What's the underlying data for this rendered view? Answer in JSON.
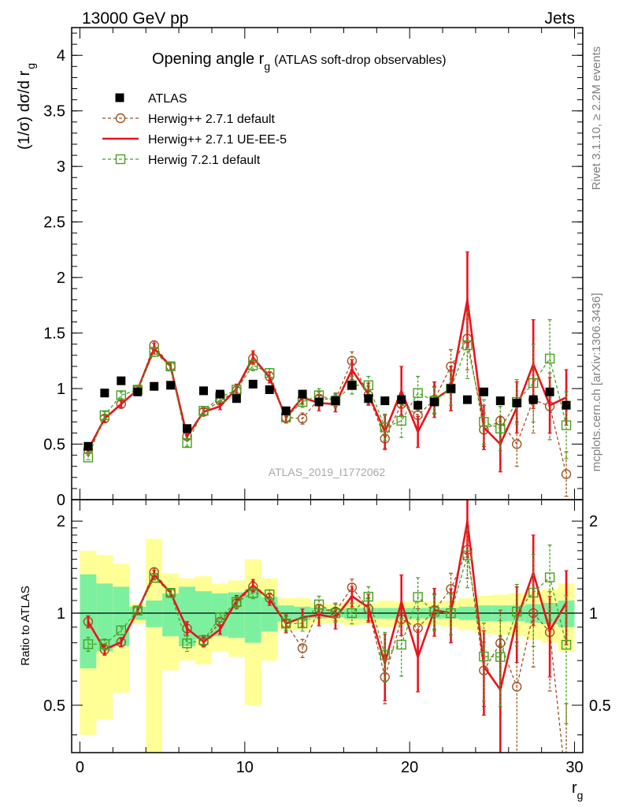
{
  "header": {
    "left": "13000 GeV pp",
    "right": "Jets",
    "title_main": "Opening angle r",
    "title_sub": "g",
    "title_extra": "(ATLAS soft-drop observables)",
    "watermark": "ATLAS_2019_I1772062",
    "side_rivet": "Rivet 3.1.10, ≥ 2.2M events",
    "side_mcplots": "mcplots.cern.ch [arXiv:1306.3436]"
  },
  "axes": {
    "ylabel_main": "(1/σ) dσ/d r",
    "ylabel_main_sub": "g",
    "ylabel_ratio": "Ratio to ATLAS",
    "xlabel": "r",
    "xlabel_sub": "g",
    "main_ylim": [
      0,
      4.25
    ],
    "main_yticks": [
      0,
      0.5,
      1,
      1.5,
      2,
      2.5,
      3,
      3.5,
      4
    ],
    "main_ytick_labels": [
      "0",
      "0.5",
      "1",
      "1.5",
      "2",
      "2.5",
      "3",
      "3.5",
      "4"
    ],
    "ratio_ylim": [
      0.35,
      2.35
    ],
    "ratio_yticks": [
      0.5,
      1,
      2
    ],
    "ratio_ytick_labels": [
      "0.5",
      "1",
      "2"
    ],
    "xlim": [
      -0.5,
      30.5
    ],
    "xticks": [
      0,
      10,
      20,
      30
    ],
    "xtick_labels": [
      "0",
      "10",
      "20",
      "30"
    ]
  },
  "colors": {
    "data": "#000000",
    "herwigpp_default": "#a0521e",
    "herwigpp_ueee5": "#e8141e",
    "herwig7": "#46a01e",
    "band_inner": "#7df0a0",
    "band_outer": "#ffff96"
  },
  "chart_data": {
    "type": "scatter",
    "x": [
      0.5,
      1.5,
      2.5,
      3.5,
      4.5,
      5.5,
      6.5,
      7.5,
      8.5,
      9.5,
      10.5,
      11.5,
      12.5,
      13.5,
      14.5,
      15.5,
      16.5,
      17.5,
      18.5,
      19.5,
      20.5,
      21.5,
      22.5,
      23.5,
      24.5,
      25.5,
      26.5,
      27.5,
      28.5,
      29.5
    ],
    "series": [
      {
        "name": "ATLAS",
        "style": "markers",
        "values": [
          0.48,
          0.96,
          1.07,
          0.97,
          1.02,
          1.03,
          0.64,
          0.98,
          0.95,
          0.91,
          1.04,
          0.99,
          0.8,
          0.95,
          0.88,
          0.89,
          1.03,
          0.91,
          0.89,
          0.9,
          0.85,
          0.88,
          1.0,
          0.9,
          0.97,
          0.89,
          0.87,
          0.9,
          0.97,
          0.85
        ],
        "band_inner": [
          0.34,
          0.25,
          0.22,
          0.05,
          0.1,
          0.16,
          0.22,
          0.18,
          0.16,
          0.17,
          0.2,
          0.13,
          0.06,
          0.05,
          0.04,
          0.03,
          0.04,
          0.04,
          0.04,
          0.04,
          0.04,
          0.04,
          0.04,
          0.05,
          0.06,
          0.06,
          0.06,
          0.07,
          0.08,
          0.1
        ],
        "band_outer": [
          0.6,
          0.55,
          0.45,
          0.08,
          0.75,
          0.35,
          0.3,
          0.32,
          0.25,
          0.28,
          0.5,
          0.3,
          0.12,
          0.12,
          0.08,
          0.07,
          0.09,
          0.08,
          0.1,
          0.09,
          0.09,
          0.09,
          0.1,
          0.12,
          0.14,
          0.15,
          0.16,
          0.18,
          0.2,
          0.25
        ]
      },
      {
        "name": "Herwig++ 2.7.1 default",
        "style": "dashed-circles",
        "values": [
          0.45,
          0.73,
          0.86,
          0.99,
          1.39,
          1.2,
          0.57,
          0.79,
          0.89,
          0.98,
          1.27,
          1.11,
          0.74,
          0.73,
          0.91,
          0.9,
          1.25,
          0.94,
          0.55,
          0.86,
          0.76,
          0.9,
          1.2,
          1.45,
          0.63,
          0.71,
          0.5,
          0.9,
          0.84,
          0.23
        ],
        "errors": [
          0.02,
          0.03,
          0.03,
          0.03,
          0.04,
          0.04,
          0.03,
          0.03,
          0.03,
          0.04,
          0.05,
          0.04,
          0.04,
          0.05,
          0.06,
          0.06,
          0.08,
          0.08,
          0.1,
          0.1,
          0.12,
          0.12,
          0.15,
          0.28,
          0.15,
          0.2,
          0.2,
          0.3,
          0.3,
          0.2
        ]
      },
      {
        "name": "Herwig++ 2.7.1 UE-EE-5",
        "style": "solid-line",
        "values": [
          0.45,
          0.73,
          0.86,
          0.99,
          1.36,
          1.2,
          0.57,
          0.79,
          0.84,
          1.0,
          1.28,
          1.1,
          0.74,
          0.92,
          0.87,
          0.86,
          1.17,
          0.95,
          0.61,
          0.98,
          0.61,
          0.9,
          1.0,
          1.8,
          0.65,
          0.5,
          0.83,
          1.22,
          0.85,
          0.92
        ],
        "errors": [
          0.02,
          0.03,
          0.03,
          0.03,
          0.05,
          0.04,
          0.03,
          0.03,
          0.03,
          0.04,
          0.06,
          0.05,
          0.05,
          0.06,
          0.07,
          0.07,
          0.09,
          0.1,
          0.15,
          0.22,
          0.14,
          0.16,
          0.2,
          0.43,
          0.2,
          0.25,
          0.23,
          0.4,
          0.25,
          0.25
        ]
      },
      {
        "name": "Herwig 7.2.1 default",
        "style": "dashed-squares",
        "values": [
          0.38,
          0.76,
          0.94,
          0.99,
          1.33,
          1.2,
          0.51,
          0.8,
          0.92,
          0.99,
          1.21,
          1.14,
          0.74,
          0.88,
          0.94,
          0.89,
          1.03,
          1.03,
          0.65,
          0.71,
          0.96,
          0.89,
          1.0,
          1.39,
          0.7,
          0.64,
          0.88,
          1.05,
          1.27,
          0.67
        ],
        "errors": [
          0.02,
          0.03,
          0.03,
          0.03,
          0.04,
          0.04,
          0.03,
          0.03,
          0.03,
          0.04,
          0.05,
          0.04,
          0.04,
          0.05,
          0.06,
          0.06,
          0.08,
          0.08,
          0.12,
          0.15,
          0.15,
          0.12,
          0.15,
          0.3,
          0.2,
          0.2,
          0.2,
          0.35,
          0.35,
          0.3
        ]
      }
    ]
  }
}
